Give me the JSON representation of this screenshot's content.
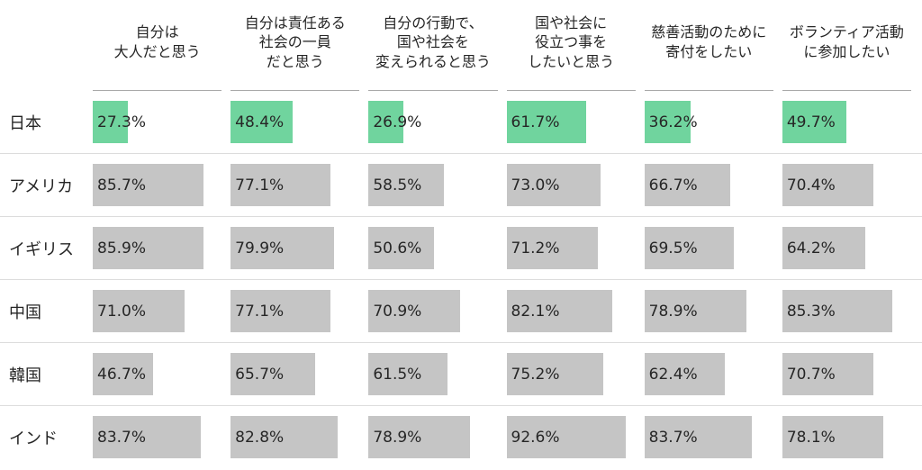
{
  "chart_data": {
    "type": "bar",
    "orientation": "horizontal",
    "title": "",
    "value_format": "percent_one_decimal",
    "xlim": [
      0,
      100
    ],
    "grid": false,
    "legend": "none",
    "categories": [
      "自分は\n大人だと思う",
      "自分は責任ある\n社会の一員\nだと思う",
      "自分の行動で、\n国や社会を\n変えられると思う",
      "国や社会に\n役立つ事を\nしたいと思う",
      "慈善活動のために\n寄付をしたい",
      "ボランティア活動\nに参加したい"
    ],
    "series": [
      {
        "name": "日本",
        "highlight": true,
        "values": [
          27.3,
          48.4,
          26.9,
          61.7,
          36.2,
          49.7
        ]
      },
      {
        "name": "アメリカ",
        "highlight": false,
        "values": [
          85.7,
          77.1,
          58.5,
          73.0,
          66.7,
          70.4
        ]
      },
      {
        "name": "イギリス",
        "highlight": false,
        "values": [
          85.9,
          79.9,
          50.6,
          71.2,
          69.5,
          64.2
        ]
      },
      {
        "name": "中国",
        "highlight": false,
        "values": [
          71.0,
          77.1,
          70.9,
          82.1,
          78.9,
          85.3
        ]
      },
      {
        "name": "韓国",
        "highlight": false,
        "values": [
          46.7,
          65.7,
          61.5,
          75.2,
          62.4,
          70.7
        ]
      },
      {
        "name": "インド",
        "highlight": false,
        "values": [
          83.7,
          82.8,
          78.9,
          92.6,
          83.7,
          78.1
        ]
      }
    ],
    "colors": {
      "highlight_bar": "#70d49e",
      "default_bar": "#c5c5c5",
      "text": "#262626",
      "header_rule": "#a9a9a9",
      "row_rule": "#dcdcdc",
      "background": "#ffffff"
    }
  }
}
